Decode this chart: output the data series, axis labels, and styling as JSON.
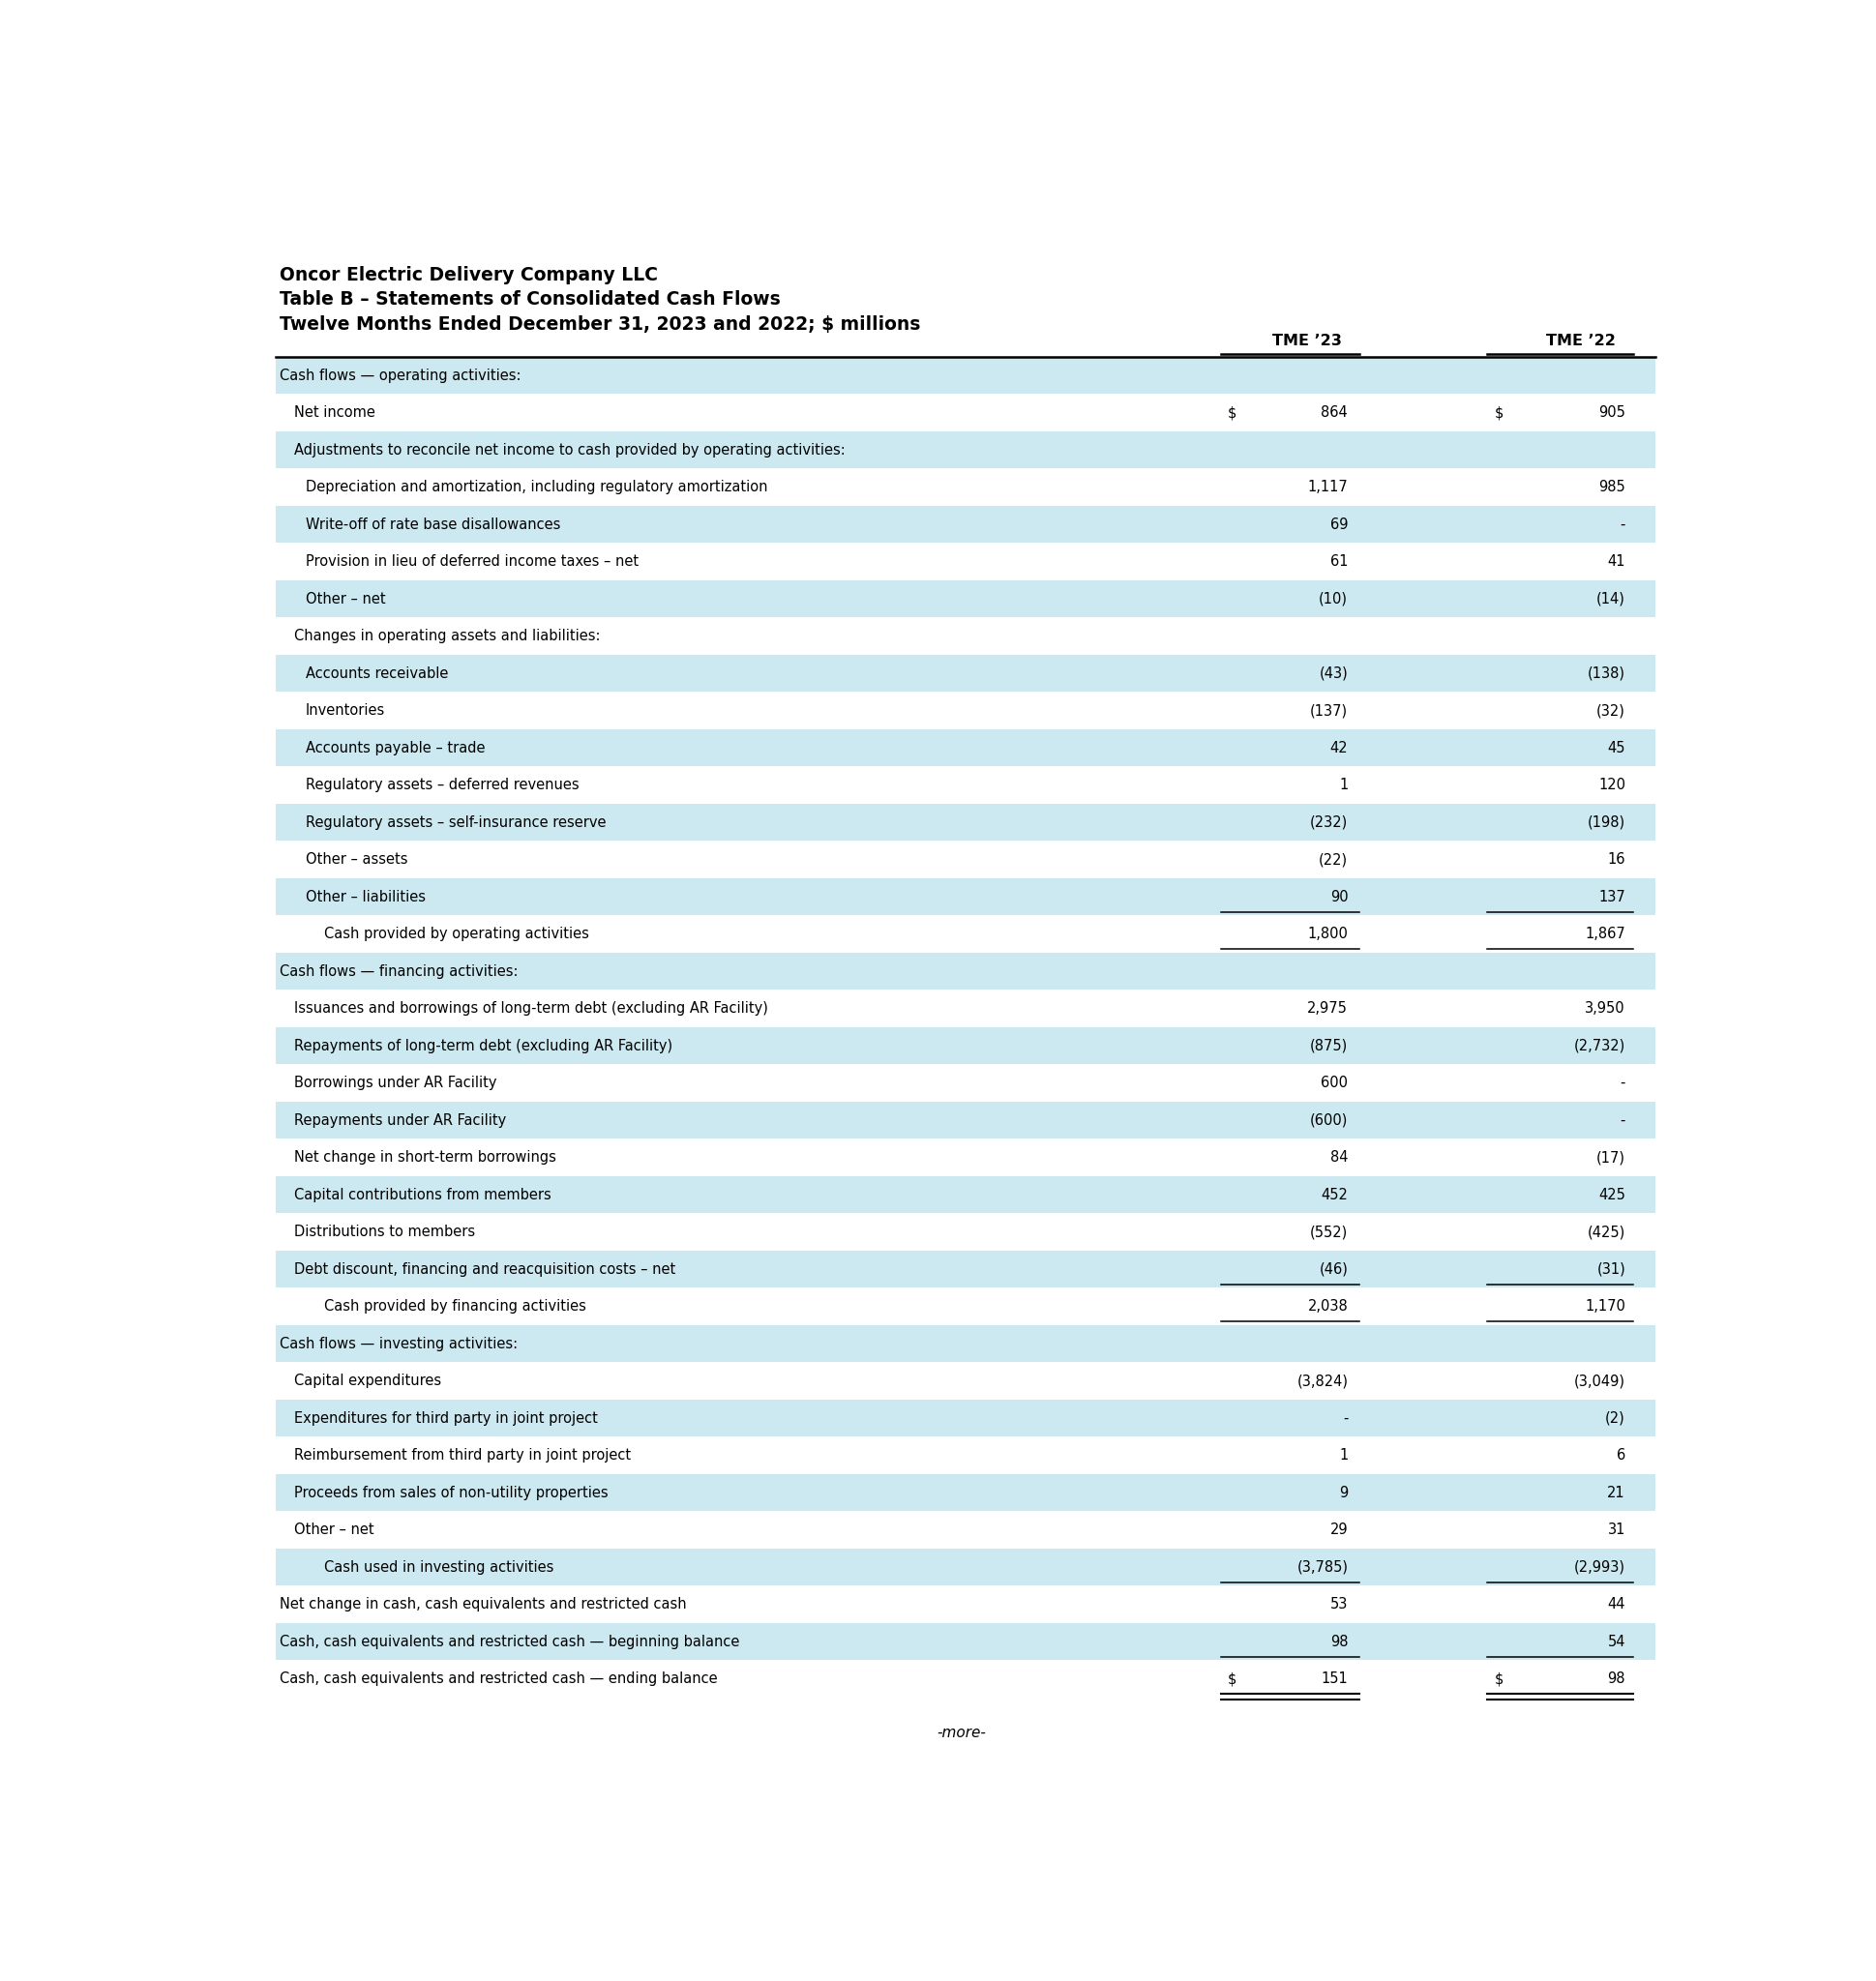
{
  "title_lines": [
    "Oncor Electric Delivery Company LLC",
    "Table B – Statements of Consolidated Cash Flows",
    "Twelve Months Ended December 31, 2023 and 2022; $ millions"
  ],
  "col_headers": [
    "TME ’23",
    "TME ’22"
  ],
  "footer": "-more-",
  "bg_color": "#ffffff",
  "stripe_color": "#cce8f0",
  "rows": [
    {
      "label": "Cash flows — operating activities:",
      "indent": 0,
      "val23": "",
      "val22": "",
      "stripe": true,
      "underline23": false,
      "underline22": false,
      "dollar23": false,
      "dollar22": false,
      "double_underline23": false,
      "double_underline22": false
    },
    {
      "label": "Net income",
      "indent": 1,
      "val23": "864",
      "val22": "905",
      "stripe": false,
      "underline23": false,
      "underline22": false,
      "dollar23": true,
      "dollar22": true,
      "double_underline23": false,
      "double_underline22": false
    },
    {
      "label": "Adjustments to reconcile net income to cash provided by operating activities:",
      "indent": 1,
      "val23": "",
      "val22": "",
      "stripe": true,
      "underline23": false,
      "underline22": false,
      "dollar23": false,
      "dollar22": false,
      "double_underline23": false,
      "double_underline22": false
    },
    {
      "label": "Depreciation and amortization, including regulatory amortization",
      "indent": 2,
      "val23": "1,117",
      "val22": "985",
      "stripe": false,
      "underline23": false,
      "underline22": false,
      "dollar23": false,
      "dollar22": false,
      "double_underline23": false,
      "double_underline22": false
    },
    {
      "label": "Write-off of rate base disallowances",
      "indent": 2,
      "val23": "69",
      "val22": "-",
      "stripe": true,
      "underline23": false,
      "underline22": false,
      "dollar23": false,
      "dollar22": false,
      "double_underline23": false,
      "double_underline22": false
    },
    {
      "label": "Provision in lieu of deferred income taxes – net",
      "indent": 2,
      "val23": "61",
      "val22": "41",
      "stripe": false,
      "underline23": false,
      "underline22": false,
      "dollar23": false,
      "dollar22": false,
      "double_underline23": false,
      "double_underline22": false
    },
    {
      "label": "Other – net",
      "indent": 2,
      "val23": "(10)",
      "val22": "(14)",
      "stripe": true,
      "underline23": false,
      "underline22": false,
      "dollar23": false,
      "dollar22": false,
      "double_underline23": false,
      "double_underline22": false
    },
    {
      "label": "Changes in operating assets and liabilities:",
      "indent": 1,
      "val23": "",
      "val22": "",
      "stripe": false,
      "underline23": false,
      "underline22": false,
      "dollar23": false,
      "dollar22": false,
      "double_underline23": false,
      "double_underline22": false
    },
    {
      "label": "Accounts receivable",
      "indent": 2,
      "val23": "(43)",
      "val22": "(138)",
      "stripe": true,
      "underline23": false,
      "underline22": false,
      "dollar23": false,
      "dollar22": false,
      "double_underline23": false,
      "double_underline22": false
    },
    {
      "label": "Inventories",
      "indent": 2,
      "val23": "(137)",
      "val22": "(32)",
      "stripe": false,
      "underline23": false,
      "underline22": false,
      "dollar23": false,
      "dollar22": false,
      "double_underline23": false,
      "double_underline22": false
    },
    {
      "label": "Accounts payable – trade",
      "indent": 2,
      "val23": "42",
      "val22": "45",
      "stripe": true,
      "underline23": false,
      "underline22": false,
      "dollar23": false,
      "dollar22": false,
      "double_underline23": false,
      "double_underline22": false
    },
    {
      "label": "Regulatory assets – deferred revenues",
      "indent": 2,
      "val23": "1",
      "val22": "120",
      "stripe": false,
      "underline23": false,
      "underline22": false,
      "dollar23": false,
      "dollar22": false,
      "double_underline23": false,
      "double_underline22": false
    },
    {
      "label": "Regulatory assets – self-insurance reserve",
      "indent": 2,
      "val23": "(232)",
      "val22": "(198)",
      "stripe": true,
      "underline23": false,
      "underline22": false,
      "dollar23": false,
      "dollar22": false,
      "double_underline23": false,
      "double_underline22": false
    },
    {
      "label": "Other – assets",
      "indent": 2,
      "val23": "(22)",
      "val22": "16",
      "stripe": false,
      "underline23": false,
      "underline22": false,
      "dollar23": false,
      "dollar22": false,
      "double_underline23": false,
      "double_underline22": false
    },
    {
      "label": "Other – liabilities",
      "indent": 2,
      "val23": "90",
      "val22": "137",
      "stripe": true,
      "underline23": true,
      "underline22": true,
      "dollar23": false,
      "dollar22": false,
      "double_underline23": false,
      "double_underline22": false
    },
    {
      "label": "Cash provided by operating activities",
      "indent": 3,
      "val23": "1,800",
      "val22": "1,867",
      "stripe": false,
      "underline23": true,
      "underline22": true,
      "dollar23": false,
      "dollar22": false,
      "double_underline23": false,
      "double_underline22": false
    },
    {
      "label": "Cash flows — financing activities:",
      "indent": 0,
      "val23": "",
      "val22": "",
      "stripe": true,
      "underline23": false,
      "underline22": false,
      "dollar23": false,
      "dollar22": false,
      "double_underline23": false,
      "double_underline22": false
    },
    {
      "label": "Issuances and borrowings of long-term debt (excluding AR Facility)",
      "indent": 1,
      "val23": "2,975",
      "val22": "3,950",
      "stripe": false,
      "underline23": false,
      "underline22": false,
      "dollar23": false,
      "dollar22": false,
      "double_underline23": false,
      "double_underline22": false
    },
    {
      "label": "Repayments of long-term debt (excluding AR Facility)",
      "indent": 1,
      "val23": "(875)",
      "val22": "(2,732)",
      "stripe": true,
      "underline23": false,
      "underline22": false,
      "dollar23": false,
      "dollar22": false,
      "double_underline23": false,
      "double_underline22": false
    },
    {
      "label": "Borrowings under AR Facility",
      "indent": 1,
      "val23": "600",
      "val22": "-",
      "stripe": false,
      "underline23": false,
      "underline22": false,
      "dollar23": false,
      "dollar22": false,
      "double_underline23": false,
      "double_underline22": false
    },
    {
      "label": "Repayments under AR Facility",
      "indent": 1,
      "val23": "(600)",
      "val22": "-",
      "stripe": true,
      "underline23": false,
      "underline22": false,
      "dollar23": false,
      "dollar22": false,
      "double_underline23": false,
      "double_underline22": false
    },
    {
      "label": "Net change in short-term borrowings",
      "indent": 1,
      "val23": "84",
      "val22": "(17)",
      "stripe": false,
      "underline23": false,
      "underline22": false,
      "dollar23": false,
      "dollar22": false,
      "double_underline23": false,
      "double_underline22": false
    },
    {
      "label": "Capital contributions from members",
      "indent": 1,
      "val23": "452",
      "val22": "425",
      "stripe": true,
      "underline23": false,
      "underline22": false,
      "dollar23": false,
      "dollar22": false,
      "double_underline23": false,
      "double_underline22": false
    },
    {
      "label": "Distributions to members",
      "indent": 1,
      "val23": "(552)",
      "val22": "(425)",
      "stripe": false,
      "underline23": false,
      "underline22": false,
      "dollar23": false,
      "dollar22": false,
      "double_underline23": false,
      "double_underline22": false
    },
    {
      "label": "Debt discount, financing and reacquisition costs – net",
      "indent": 1,
      "val23": "(46)",
      "val22": "(31)",
      "stripe": true,
      "underline23": true,
      "underline22": true,
      "dollar23": false,
      "dollar22": false,
      "double_underline23": false,
      "double_underline22": false
    },
    {
      "label": "Cash provided by financing activities",
      "indent": 3,
      "val23": "2,038",
      "val22": "1,170",
      "stripe": false,
      "underline23": true,
      "underline22": true,
      "dollar23": false,
      "dollar22": false,
      "double_underline23": false,
      "double_underline22": false
    },
    {
      "label": "Cash flows — investing activities:",
      "indent": 0,
      "val23": "",
      "val22": "",
      "stripe": true,
      "underline23": false,
      "underline22": false,
      "dollar23": false,
      "dollar22": false,
      "double_underline23": false,
      "double_underline22": false
    },
    {
      "label": "Capital expenditures",
      "indent": 1,
      "val23": "(3,824)",
      "val22": "(3,049)",
      "stripe": false,
      "underline23": false,
      "underline22": false,
      "dollar23": false,
      "dollar22": false,
      "double_underline23": false,
      "double_underline22": false
    },
    {
      "label": "Expenditures for third party in joint project",
      "indent": 1,
      "val23": "-",
      "val22": "(2)",
      "stripe": true,
      "underline23": false,
      "underline22": false,
      "dollar23": false,
      "dollar22": false,
      "double_underline23": false,
      "double_underline22": false
    },
    {
      "label": "Reimbursement from third party in joint project",
      "indent": 1,
      "val23": "1",
      "val22": "6",
      "stripe": false,
      "underline23": false,
      "underline22": false,
      "dollar23": false,
      "dollar22": false,
      "double_underline23": false,
      "double_underline22": false
    },
    {
      "label": "Proceeds from sales of non-utility properties",
      "indent": 1,
      "val23": "9",
      "val22": "21",
      "stripe": true,
      "underline23": false,
      "underline22": false,
      "dollar23": false,
      "dollar22": false,
      "double_underline23": false,
      "double_underline22": false
    },
    {
      "label": "Other – net",
      "indent": 1,
      "val23": "29",
      "val22": "31",
      "stripe": false,
      "underline23": false,
      "underline22": false,
      "dollar23": false,
      "dollar22": false,
      "double_underline23": false,
      "double_underline22": false
    },
    {
      "label": "Cash used in investing activities",
      "indent": 3,
      "val23": "(3,785)",
      "val22": "(2,993)",
      "stripe": true,
      "underline23": true,
      "underline22": true,
      "dollar23": false,
      "dollar22": false,
      "double_underline23": false,
      "double_underline22": false
    },
    {
      "label": "Net change in cash, cash equivalents and restricted cash",
      "indent": 0,
      "val23": "53",
      "val22": "44",
      "stripe": false,
      "underline23": false,
      "underline22": false,
      "dollar23": false,
      "dollar22": false,
      "double_underline23": false,
      "double_underline22": false
    },
    {
      "label": "Cash, cash equivalents and restricted cash — beginning balance",
      "indent": 0,
      "val23": "98",
      "val22": "54",
      "stripe": true,
      "underline23": true,
      "underline22": true,
      "dollar23": false,
      "dollar22": false,
      "double_underline23": false,
      "double_underline22": false
    },
    {
      "label": "Cash, cash equivalents and restricted cash — ending balance",
      "indent": 0,
      "val23": "151",
      "val22": "98",
      "stripe": false,
      "underline23": false,
      "underline22": false,
      "dollar23": true,
      "dollar22": true,
      "double_underline23": true,
      "double_underline22": true
    }
  ]
}
